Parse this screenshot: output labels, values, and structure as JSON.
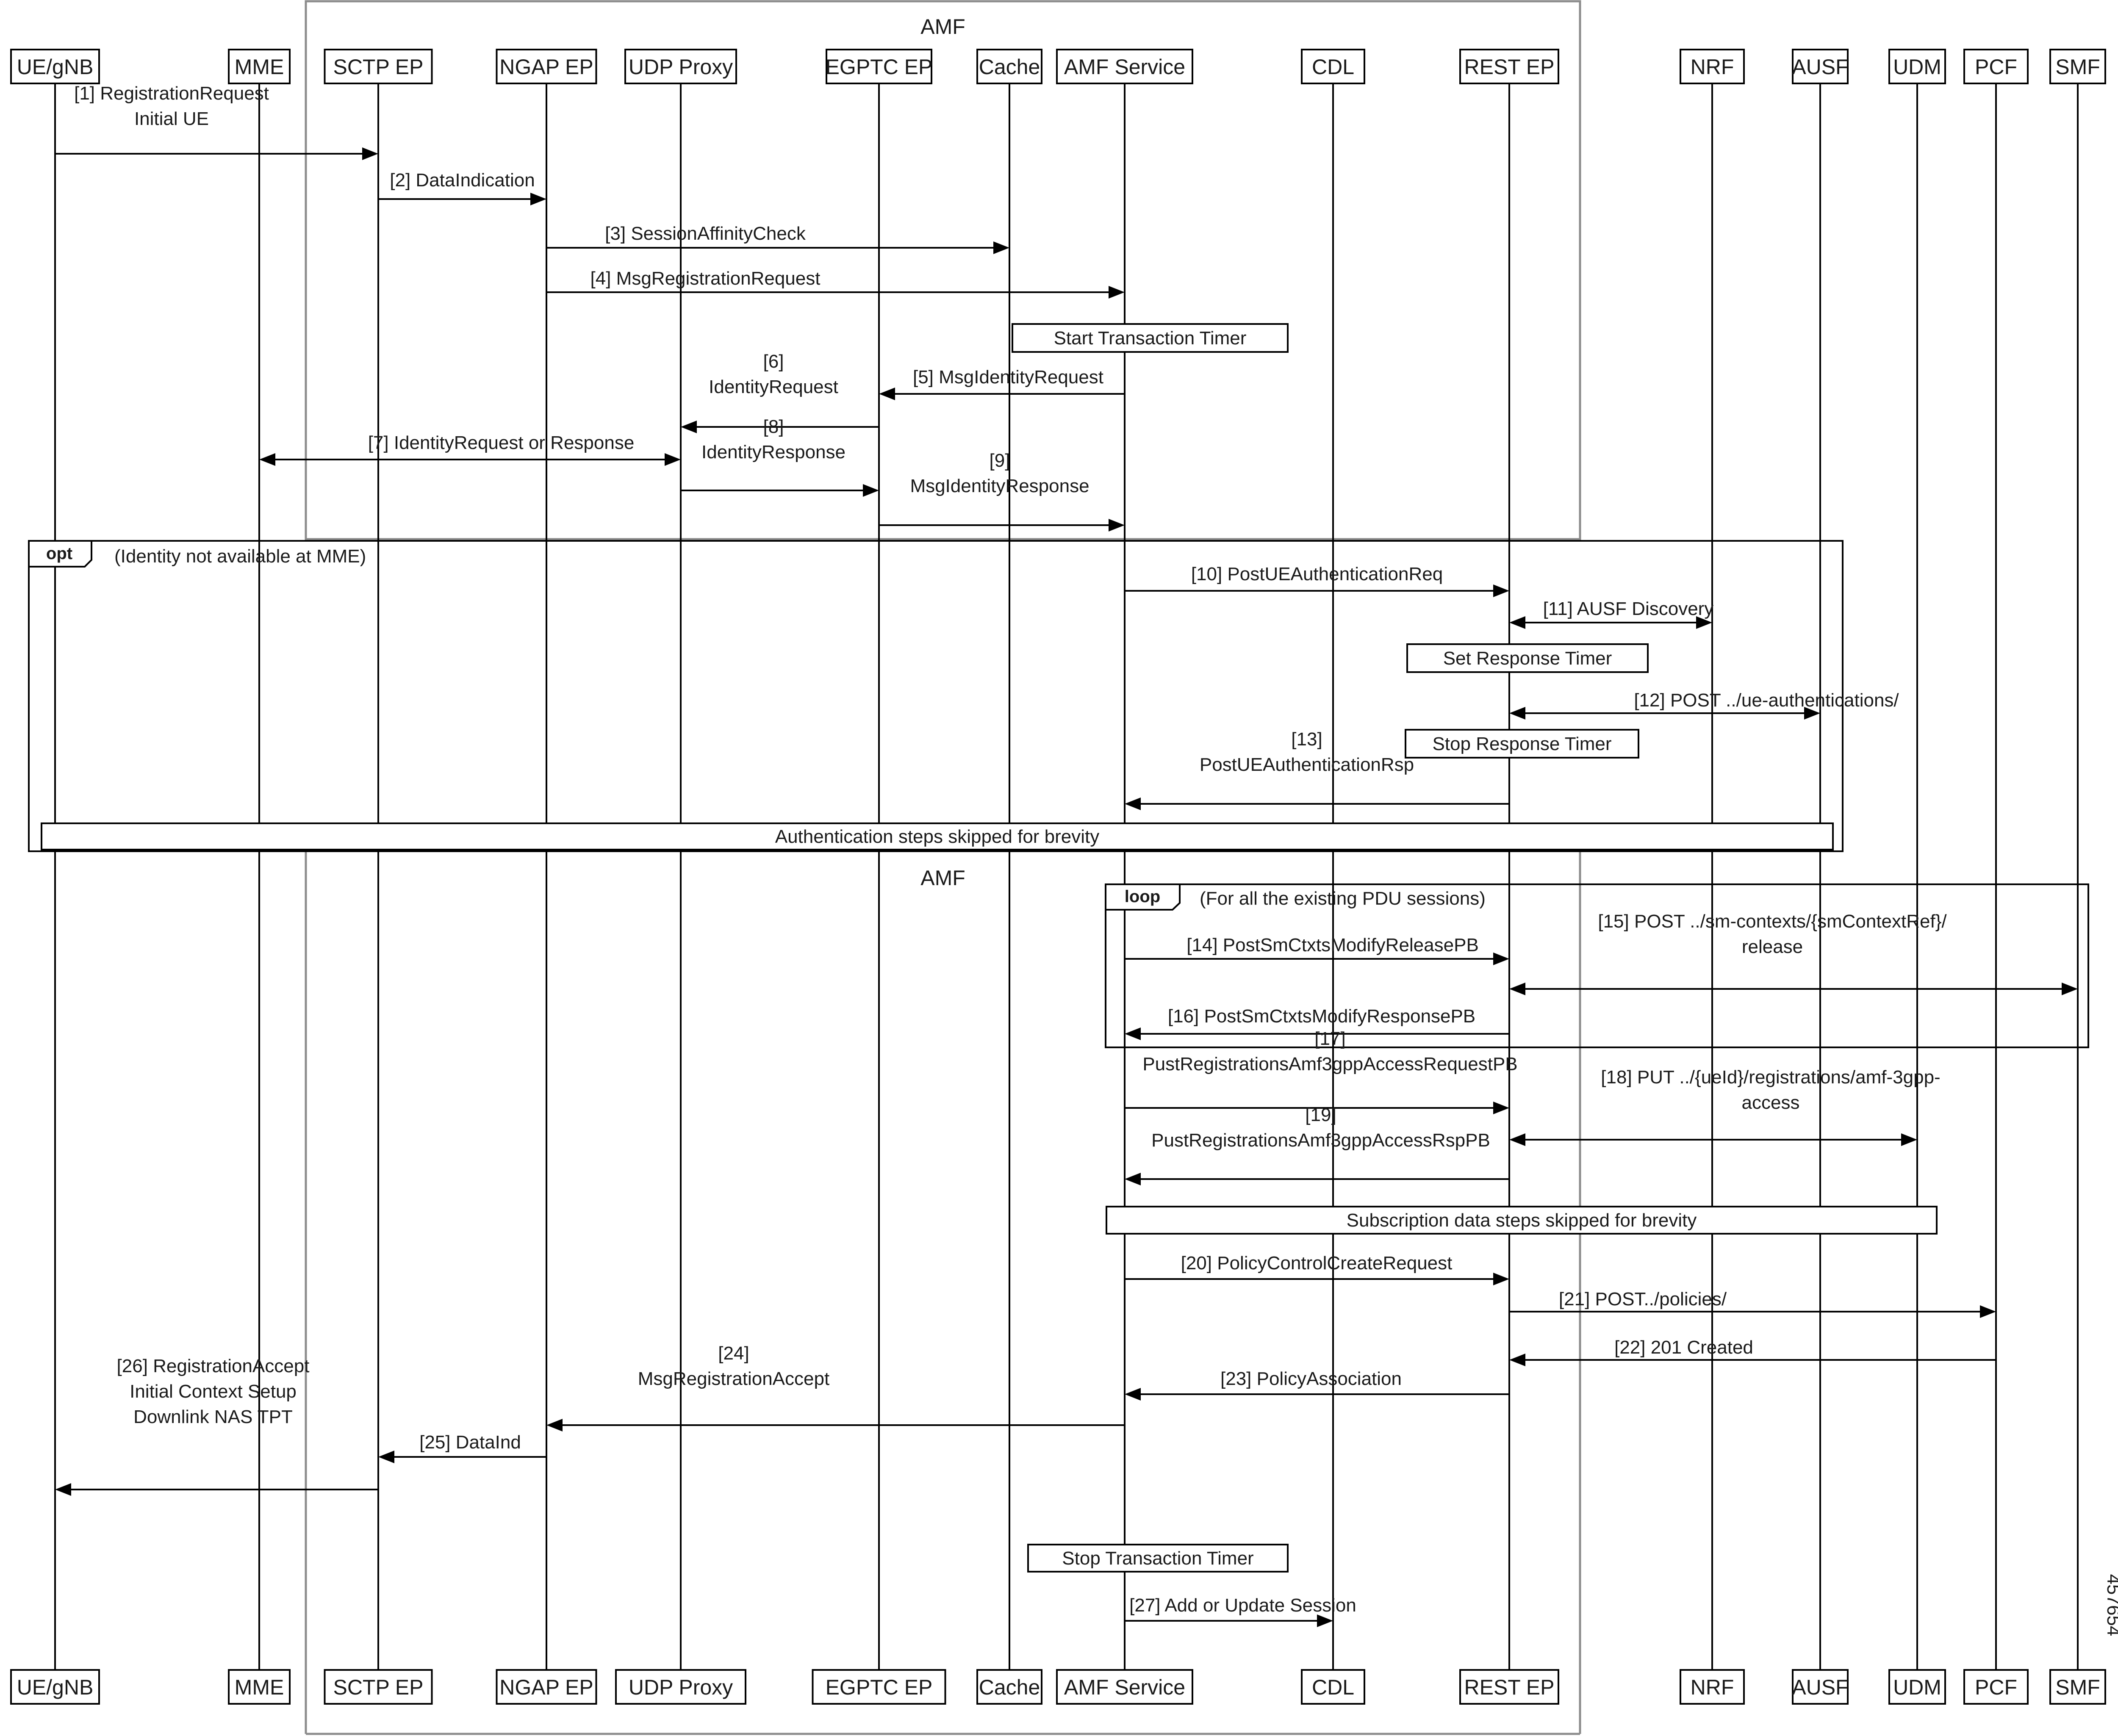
{
  "amf_label": "AMF",
  "figure_id": "457654",
  "participants": [
    {
      "key": "ue",
      "label": "UE/gNB"
    },
    {
      "key": "mme",
      "label": "MME"
    },
    {
      "key": "sctp",
      "label": "SCTP EP"
    },
    {
      "key": "ngap",
      "label": "NGAP EP"
    },
    {
      "key": "udp",
      "label": "UDP Proxy"
    },
    {
      "key": "egptc",
      "label": "EGPTC EP"
    },
    {
      "key": "cache",
      "label": "Cache"
    },
    {
      "key": "amfsvc",
      "label": "AMF Service"
    },
    {
      "key": "cdl",
      "label": "CDL"
    },
    {
      "key": "rest",
      "label": "REST EP"
    },
    {
      "key": "nrf",
      "label": "NRF"
    },
    {
      "key": "ausf",
      "label": "AUSF"
    },
    {
      "key": "udm",
      "label": "UDM"
    },
    {
      "key": "pcf",
      "label": "PCF"
    },
    {
      "key": "smf",
      "label": "SMF"
    }
  ],
  "messages": [
    {
      "from": "ue",
      "to": "sctp",
      "lines": [
        "[1] RegistrationRequest",
        "Initial UE"
      ]
    },
    {
      "from": "sctp",
      "to": "ngap",
      "lines": [
        "[2] DataIndication"
      ]
    },
    {
      "from": "ngap",
      "to": "cache",
      "lines": [
        "[3] SessionAffinityCheck"
      ]
    },
    {
      "from": "ngap",
      "to": "amfsvc",
      "lines": [
        "[4] MsgRegistrationRequest"
      ]
    },
    {
      "from": "amfsvc",
      "to": "egptc",
      "lines": [
        "[5] MsgIdentityRequest"
      ]
    },
    {
      "from": "egptc",
      "to": "udp",
      "lines": [
        "[6]",
        "IdentityRequest"
      ]
    },
    {
      "from": "mme",
      "to": "udp",
      "lines": [
        "[7] IdentityRequest or Response"
      ],
      "bidirectional": true
    },
    {
      "from": "udp",
      "to": "egptc",
      "lines": [
        "[8]",
        "IdentityResponse"
      ]
    },
    {
      "from": "egptc",
      "to": "amfsvc",
      "lines": [
        "[9]",
        "MsgIdentityResponse"
      ]
    },
    {
      "from": "amfsvc",
      "to": "rest",
      "lines": [
        "[10] PostUEAuthenticationReq"
      ]
    },
    {
      "from": "rest",
      "to": "nrf",
      "lines": [
        "[11] AUSF Discovery"
      ],
      "bidirectional": true
    },
    {
      "from": "rest",
      "to": "ausf",
      "lines": [
        "[12] POST ../ue-authentications/"
      ],
      "bidirectional": true
    },
    {
      "from": "rest",
      "to": "amfsvc",
      "lines": [
        "[13]",
        "PostUEAuthenticationRsp"
      ]
    },
    {
      "from": "amfsvc",
      "to": "rest",
      "lines": [
        "[14] PostSmCtxtsModifyReleasePB"
      ]
    },
    {
      "from": "rest",
      "to": "smf",
      "lines": [
        "[15] POST ../sm-contexts/{smContextRef}/",
        "release"
      ],
      "bidirectional": true
    },
    {
      "from": "rest",
      "to": "amfsvc",
      "lines": [
        "[16] PostSmCtxtsModifyResponsePB"
      ]
    },
    {
      "from": "amfsvc",
      "to": "rest",
      "lines": [
        "[17]",
        "PustRegistrationsAmf3gppAccessRequestPB"
      ]
    },
    {
      "from": "rest",
      "to": "udm",
      "lines": [
        "[18] PUT ../{ueId}/registrations/amf-3gpp-",
        "access"
      ],
      "bidirectional": true
    },
    {
      "from": "rest",
      "to": "amfsvc",
      "lines": [
        "[19]",
        "PustRegistrationsAmf3gppAccessRspPB"
      ]
    },
    {
      "from": "amfsvc",
      "to": "rest",
      "lines": [
        "[20] PolicyControlCreateRequest"
      ]
    },
    {
      "from": "rest",
      "to": "pcf",
      "lines": [
        "[21] POST../policies/"
      ]
    },
    {
      "from": "pcf",
      "to": "rest",
      "lines": [
        "[22] 201 Created"
      ]
    },
    {
      "from": "rest",
      "to": "amfsvc",
      "lines": [
        "[23] PolicyAssociation"
      ]
    },
    {
      "from": "amfsvc",
      "to": "ngap",
      "lines": [
        "[24]",
        "MsgRegistrationAccept"
      ]
    },
    {
      "from": "ngap",
      "to": "sctp",
      "lines": [
        "[25] DataInd"
      ]
    },
    {
      "from": "sctp",
      "to": "ue",
      "lines": [
        "[26] RegistrationAccept",
        "Initial Context Setup",
        "Downlink NAS TPT"
      ]
    },
    {
      "from": "amfsvc",
      "to": "cdl",
      "lines": [
        "[27] Add or Update Session"
      ]
    }
  ],
  "notes": [
    {
      "key": "start-transaction-timer",
      "text": "Start Transaction Timer"
    },
    {
      "key": "set-response-timer",
      "text": "Set Response Timer"
    },
    {
      "key": "stop-response-timer",
      "text": "Stop Response Timer"
    },
    {
      "key": "authentication-skipped",
      "text": "Authentication steps skipped for brevity"
    },
    {
      "key": "subscription-skipped",
      "text": "Subscription data steps skipped for brevity"
    },
    {
      "key": "stop-transaction-timer",
      "text": "Stop Transaction Timer"
    }
  ],
  "fragments": [
    {
      "key": "opt",
      "operator": "opt",
      "condition": "(Identity not available at MME)"
    },
    {
      "key": "loop",
      "operator": "loop",
      "condition": "(For all the existing PDU sessions)"
    }
  ]
}
